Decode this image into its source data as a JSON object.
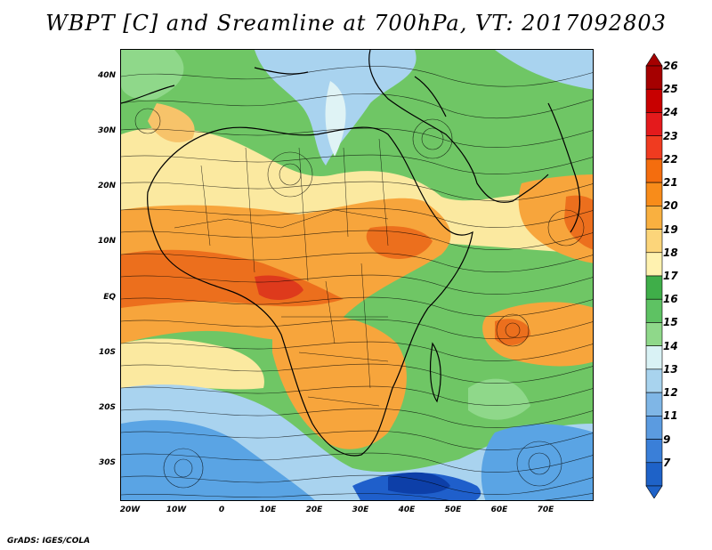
{
  "title": "WBPT [C] and Sreamline at 700hPa, VT: 2017092803",
  "credit": "GrADS: IGES/COLA",
  "lat_labels": [
    "40N",
    "30N",
    "20N",
    "10N",
    "EQ",
    "10S",
    "20S",
    "30S"
  ],
  "lon_labels": [
    "20W",
    "10W",
    "0",
    "10E",
    "20E",
    "30E",
    "40E",
    "50E",
    "60E",
    "70E"
  ],
  "colorbar": {
    "levels": [
      "26",
      "25",
      "24",
      "23",
      "22",
      "21",
      "20",
      "19",
      "18",
      "17",
      "16",
      "15",
      "14",
      "13",
      "12",
      "11",
      "9",
      "7"
    ],
    "colors": [
      "#a50000",
      "#c80000",
      "#e41a1c",
      "#f03b20",
      "#f46d0e",
      "#f88c1a",
      "#f9b040",
      "#fcd57a",
      "#fff2b0",
      "#3fae49",
      "#5ec263",
      "#8fd88a",
      "#d9f2f5",
      "#a8d3ee",
      "#7fb6e6",
      "#5b9be0",
      "#3a7fd8",
      "#1e62c8"
    ]
  },
  "map": {
    "field": "Wet-bulb potential temperature [C] with streamlines at 700hPa",
    "palette": {
      "water": "#1f5fcb",
      "ocean": "#5aa4e4",
      "cool": "#a9d3ef",
      "pale": "#dff3f5",
      "green": "#4bb54f",
      "lightgreen": "#8fd88a",
      "yellow": "#fbe9a0",
      "orange": "#f7a53c",
      "darkorange": "#ec6f1d",
      "red": "#de3a1c"
    }
  }
}
